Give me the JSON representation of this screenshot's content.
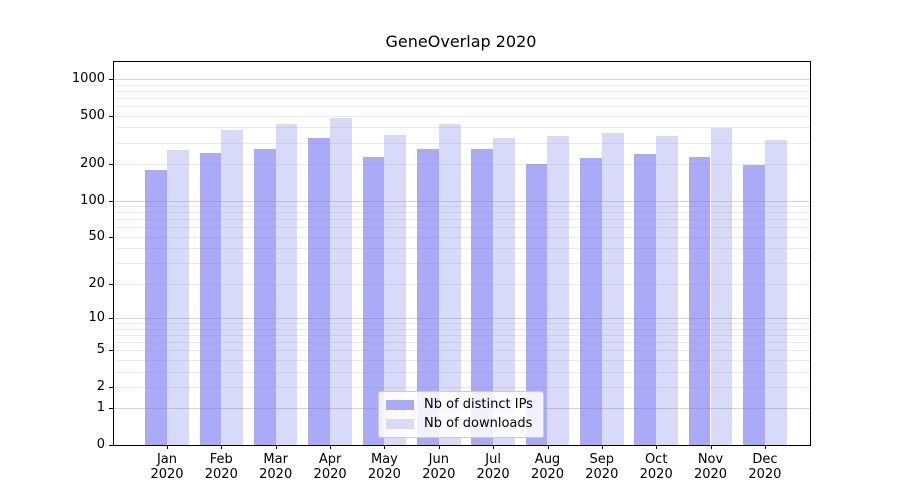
{
  "chart_data": {
    "type": "bar",
    "title": "GeneOverlap 2020",
    "x_year": "2020",
    "categories": [
      "Jan",
      "Feb",
      "Mar",
      "Apr",
      "May",
      "Jun",
      "Jul",
      "Aug",
      "Sep",
      "Oct",
      "Nov",
      "Dec"
    ],
    "yscale": "log1p",
    "yticks": [
      0,
      1,
      2,
      5,
      10,
      20,
      50,
      100,
      200,
      500,
      1000
    ],
    "ylim": [
      0,
      1375
    ],
    "grid": "horizontal, minor and major lines, drawn over bars",
    "legend_position": "lower center inside plot",
    "colors": {
      "distinct_ips": "#aaaaf8",
      "downloads": "#d9d9fa",
      "grid_minor": "#ededed",
      "grid_major": "#d5d5d5",
      "spine": "#000000"
    },
    "series": [
      {
        "name": "Nb of distinct IPs",
        "color": "#aaaaf8",
        "values": [
          180,
          245,
          265,
          330,
          230,
          265,
          265,
          200,
          225,
          240,
          230,
          195
        ]
      },
      {
        "name": "Nb of downloads",
        "color": "#d9d9fa",
        "values": [
          260,
          380,
          430,
          480,
          345,
          430,
          330,
          340,
          360,
          340,
          395,
          315
        ]
      }
    ]
  }
}
